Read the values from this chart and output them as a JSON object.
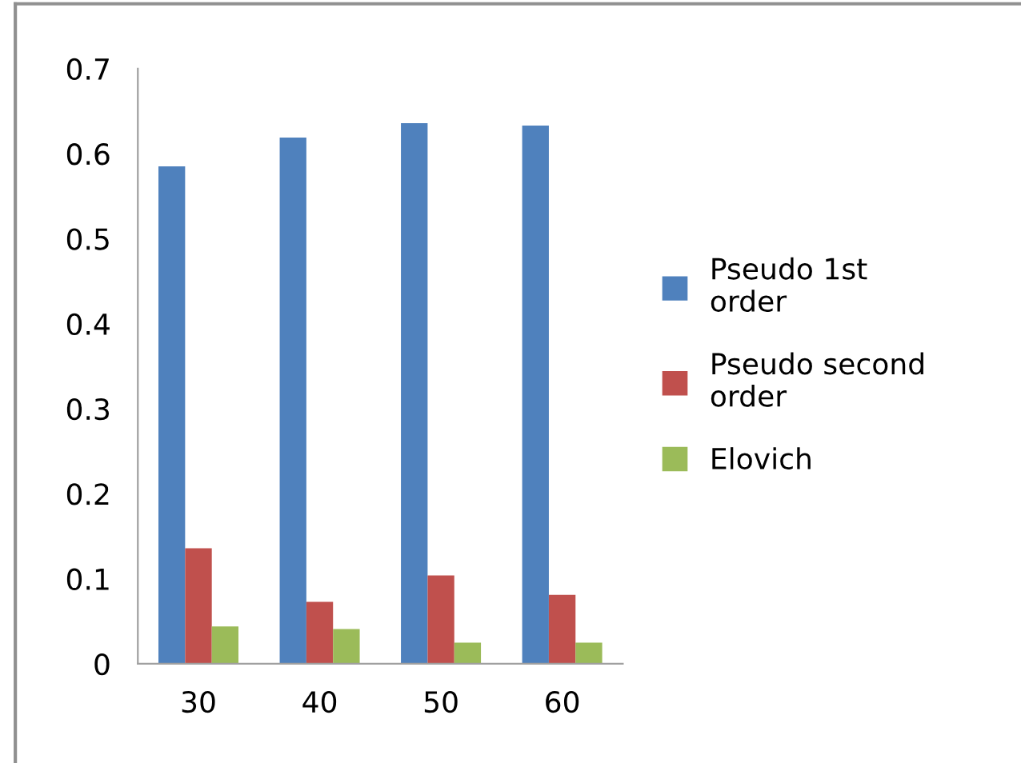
{
  "chart_data": {
    "type": "bar",
    "categories": [
      "30",
      "40",
      "50",
      "60"
    ],
    "series": [
      {
        "name": "Pseudo 1st order",
        "color": "#4f81bd",
        "values": [
          0.585,
          0.619,
          0.636,
          0.633
        ]
      },
      {
        "name": "Pseudo second order",
        "color": "#c0504d",
        "values": [
          0.136,
          0.073,
          0.104,
          0.081
        ]
      },
      {
        "name": "Elovich",
        "color": "#9bbb59",
        "values": [
          0.044,
          0.041,
          0.025,
          0.025
        ]
      }
    ],
    "ylim": [
      0,
      0.7
    ],
    "yticks": [
      {
        "value": 0,
        "label": "0"
      },
      0.1,
      0.2,
      0.3,
      0.4,
      0.5,
      0.6,
      0.7
    ],
    "grid": false,
    "legend": "right"
  }
}
